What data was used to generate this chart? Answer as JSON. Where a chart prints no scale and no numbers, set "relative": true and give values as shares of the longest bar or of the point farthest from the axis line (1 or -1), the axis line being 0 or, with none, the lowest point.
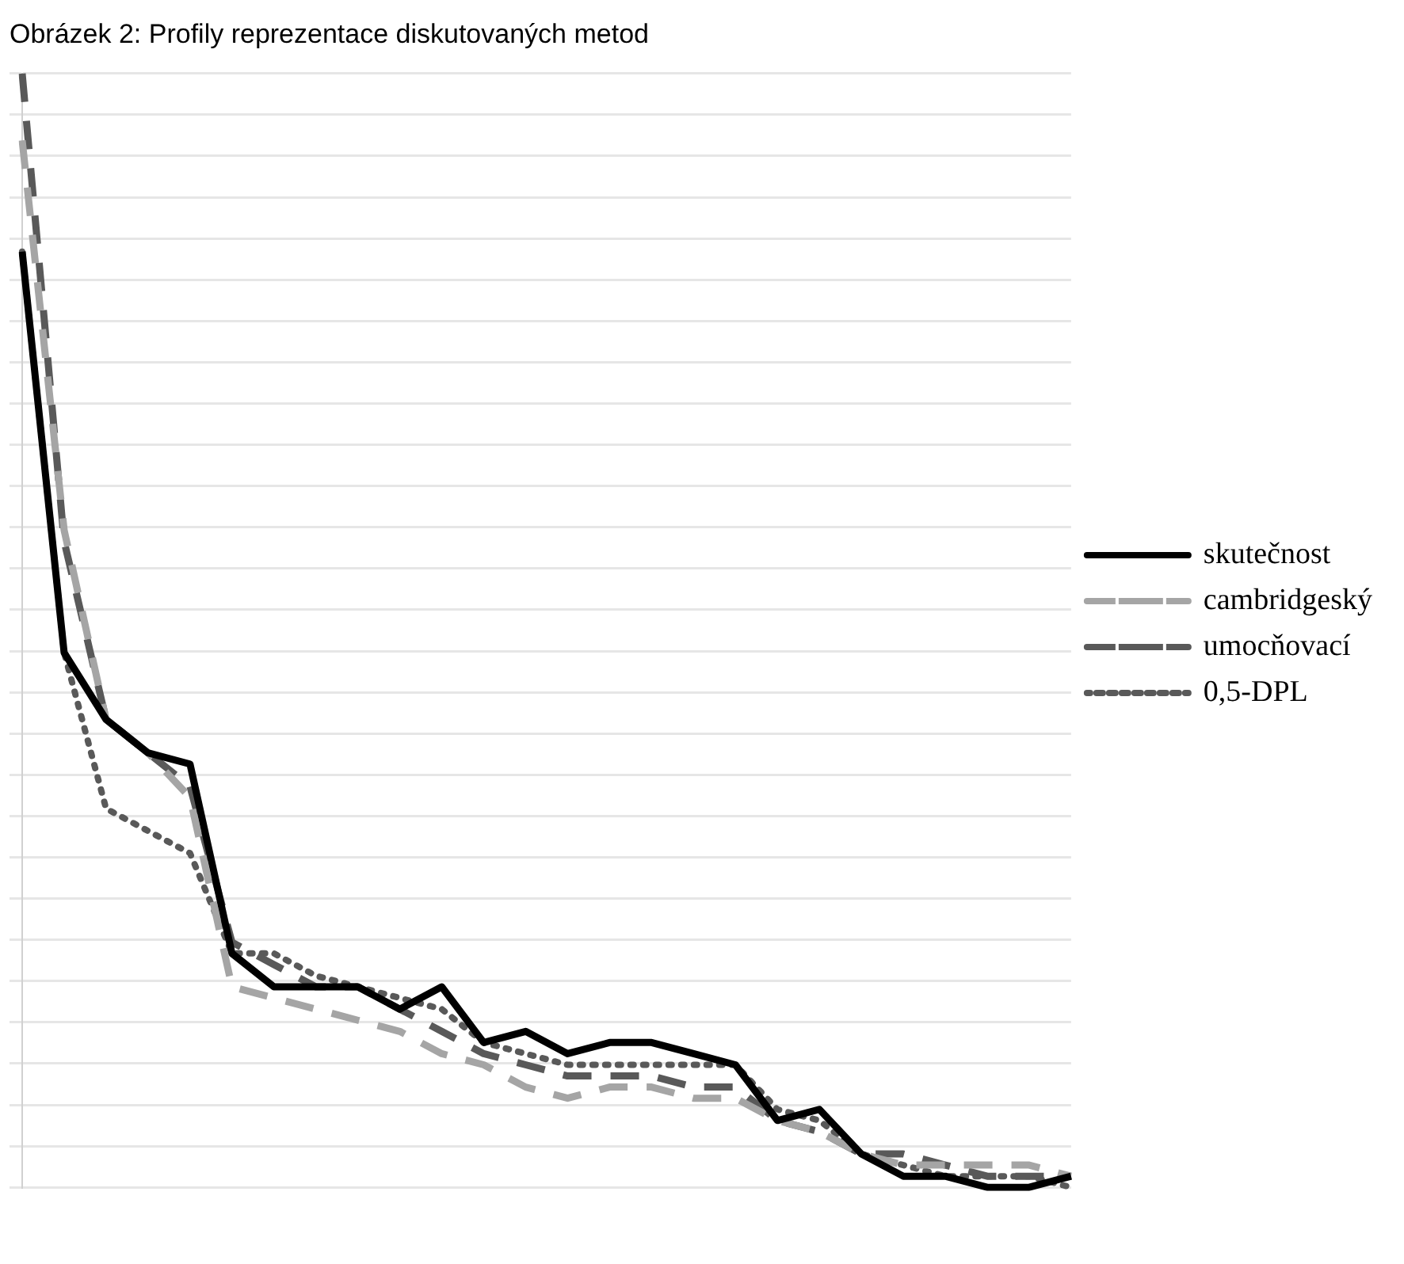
{
  "chart_data": {
    "type": "line",
    "title": "Obrázek 2: Profily reprezentace diskutovaných metod",
    "relative": true,
    "grid": "y",
    "legend": "right",
    "marker": "none",
    "categories": [
      null,
      null,
      null,
      null,
      null,
      null,
      null,
      null,
      null,
      null,
      null,
      null,
      null,
      null,
      null,
      null,
      null,
      null,
      null,
      null,
      null,
      null,
      null,
      null,
      null,
      null
    ],
    "series": [
      {
        "name": "skutečnost",
        "color": "#000000",
        "line_style": "solid",
        "values": [
          0.84,
          0.48,
          0.42,
          0.39,
          0.38,
          0.21,
          0.18,
          0.18,
          0.18,
          0.16,
          0.18,
          0.13,
          0.14,
          0.12,
          0.13,
          0.13,
          0.12,
          0.11,
          0.06,
          0.07,
          0.03,
          0.01,
          0.01,
          0,
          0,
          0.01
        ]
      },
      {
        "name": "cambridgeský",
        "color": "#a5a5a5",
        "line_style": "dashed",
        "values": [
          0.94,
          0.59,
          0.42,
          0.39,
          0.35,
          0.18,
          0.17,
          0.16,
          0.15,
          0.14,
          0.12,
          0.11,
          0.09,
          0.08,
          0.09,
          0.09,
          0.08,
          0.08,
          0.06,
          0.05,
          0.03,
          0.02,
          0.02,
          0.02,
          0.02,
          0.01
        ]
      },
      {
        "name": "umocňovací",
        "color": "#595959",
        "line_style": "dashed",
        "values": [
          1,
          0.58,
          0.42,
          0.39,
          0.36,
          0.22,
          0.2,
          0.18,
          0.18,
          0.16,
          0.14,
          0.12,
          0.11,
          0.1,
          0.1,
          0.1,
          0.09,
          0.09,
          0.06,
          0.05,
          0.03,
          0.03,
          0.02,
          0.01,
          0.01,
          0.01
        ]
      },
      {
        "name": "0,5-DPL",
        "color": "#595959",
        "line_style": "dotted",
        "values": [
          0.84,
          0.48,
          0.34,
          0.32,
          0.3,
          0.21,
          0.21,
          0.19,
          0.18,
          0.17,
          0.16,
          0.13,
          0.12,
          0.11,
          0.11,
          0.11,
          0.11,
          0.11,
          0.07,
          0.06,
          0.03,
          0.02,
          0.01,
          0.01,
          0.01,
          0
        ]
      }
    ]
  }
}
